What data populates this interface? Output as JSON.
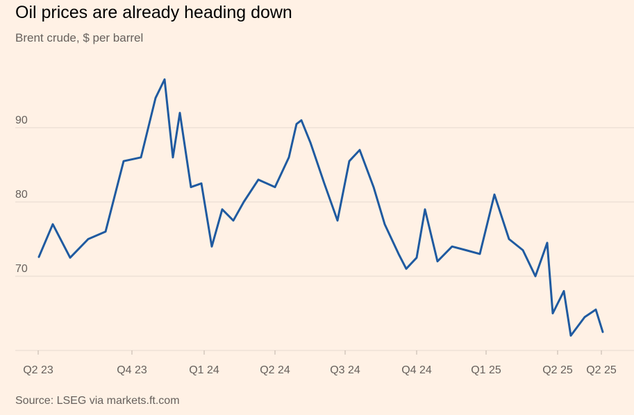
{
  "header": {
    "title": "Oil prices are already heading down",
    "subtitle": "Brent crude, $ per barrel"
  },
  "footer": {
    "source": "Source: LSEG via markets.ft.com"
  },
  "colors": {
    "background": "#fff1e5",
    "line": "#1f5aa0",
    "grid": "#e6d9ce",
    "axis_text": "#66605c"
  },
  "chart_data": {
    "type": "line",
    "title": "Oil prices are already heading down",
    "subtitle": "Brent crude, $ per barrel",
    "source": "Source: LSEG via markets.ft.com",
    "x_ticks": [
      "Q2 23",
      "Q4 23",
      "Q1 24",
      "Q2 24",
      "Q3 24",
      "Q4 24",
      "Q1 25",
      "Q2 25",
      "Q2 25"
    ],
    "y_ticks": [
      70,
      80,
      90
    ],
    "ylim": [
      60,
      100
    ],
    "grid": "horizontal",
    "x_dates": [
      "2023-03-31",
      "2023-04-20",
      "2023-05-15",
      "2023-06-10",
      "2023-07-05",
      "2023-07-31",
      "2023-08-25",
      "2023-09-15",
      "2023-09-28",
      "2023-10-10",
      "2023-10-20",
      "2023-11-05",
      "2023-11-20",
      "2023-12-05",
      "2023-12-20",
      "2024-01-05",
      "2024-01-20",
      "2024-02-10",
      "2024-03-05",
      "2024-03-25",
      "2024-04-05",
      "2024-04-12",
      "2024-04-25",
      "2024-05-15",
      "2024-06-03",
      "2024-06-20",
      "2024-07-05",
      "2024-07-25",
      "2024-08-10",
      "2024-08-30",
      "2024-09-10",
      "2024-09-25",
      "2024-10-07",
      "2024-10-25",
      "2024-11-15",
      "2024-12-05",
      "2024-12-25",
      "2025-01-15",
      "2025-02-05",
      "2025-02-25",
      "2025-03-15",
      "2025-04-01",
      "2025-04-09",
      "2025-04-25",
      "2025-05-05",
      "2025-05-25",
      "2025-06-10",
      "2025-06-20"
    ],
    "series": [
      {
        "values": [
          72.6,
          77.0,
          72.5,
          75.0,
          76.0,
          85.5,
          86.0,
          94.0,
          96.5,
          86.0,
          92.0,
          82.0,
          82.5,
          74.0,
          79.0,
          77.5,
          80.0,
          83.0,
          82.0,
          86.0,
          90.5,
          91.0,
          88.0,
          82.5,
          77.5,
          85.5,
          87.0,
          82.0,
          77.0,
          73.0,
          71.0,
          72.5,
          79.0,
          72.0,
          74.0,
          73.5,
          73.0,
          81.0,
          75.0,
          73.5,
          70.0,
          74.5,
          65.0,
          68.0,
          62.0,
          64.5,
          65.5,
          62.5
        ]
      }
    ]
  }
}
